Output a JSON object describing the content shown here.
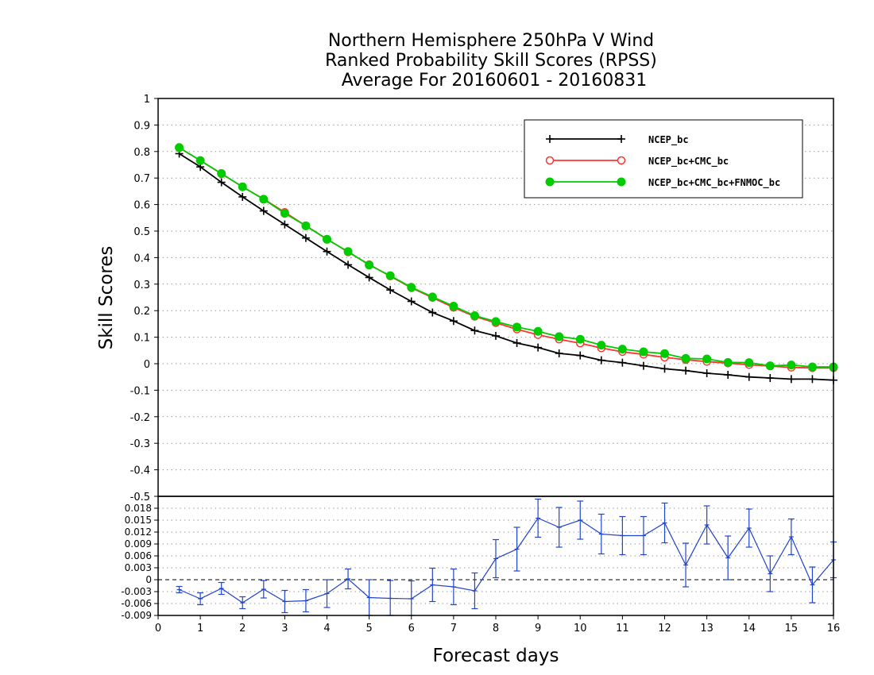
{
  "chart_data": [
    {
      "type": "line",
      "title": [
        "Northern Hemisphere 250hPa V Wind",
        "Ranked Probability Skill Scores (RPSS)",
        "Average For 20160601 - 20160831"
      ],
      "ylabel": "Skill Scores",
      "xlim": [
        0,
        16
      ],
      "ylim": [
        -0.5,
        1
      ],
      "yticks": [
        "1",
        "0.9",
        "0.8",
        "0.7",
        "0.6",
        "0.5",
        "0.4",
        "0.3",
        "0.2",
        "0.1",
        "0",
        "-0.1",
        "-0.2",
        "-0.3",
        "-0.4",
        "-0.5"
      ],
      "grid": true,
      "legend_position": "top-right",
      "x": [
        0.5,
        1.0,
        1.5,
        2.0,
        2.5,
        3.0,
        3.5,
        4.0,
        4.5,
        5.0,
        5.5,
        6.0,
        6.5,
        7.0,
        7.5,
        8.0,
        8.5,
        9.0,
        9.5,
        10.0,
        10.5,
        11.0,
        11.5,
        12.0,
        12.5,
        13.0,
        13.5,
        14.0,
        14.5,
        15.0,
        15.5,
        16.0
      ],
      "series": [
        {
          "name": "NCEP_bc",
          "color": "#000000",
          "marker": "plus",
          "values": [
            0.792,
            0.742,
            0.684,
            0.629,
            0.576,
            0.525,
            0.474,
            0.423,
            0.373,
            0.325,
            0.278,
            0.235,
            0.193,
            0.161,
            0.125,
            0.105,
            0.078,
            0.061,
            0.039,
            0.031,
            0.013,
            0.004,
            -0.008,
            -0.019,
            -0.026,
            -0.036,
            -0.042,
            -0.05,
            -0.054,
            -0.058,
            -0.058,
            -0.062
          ]
        },
        {
          "name": "NCEP_bc+CMC_bc",
          "color": "#ff3333",
          "marker": "open-circle",
          "values": [
            0.814,
            0.766,
            0.716,
            0.667,
            0.621,
            0.571,
            0.52,
            0.47,
            0.421,
            0.374,
            0.33,
            0.286,
            0.249,
            0.212,
            0.178,
            0.154,
            0.13,
            0.109,
            0.092,
            0.077,
            0.059,
            0.045,
            0.035,
            0.024,
            0.015,
            0.008,
            0.002,
            -0.004,
            -0.009,
            -0.014,
            -0.016,
            -0.016
          ]
        },
        {
          "name": "NCEP_bc+CMC_bc+FNMOC_bc",
          "color": "#00cc00",
          "marker": "filled-circle",
          "values": [
            0.815,
            0.766,
            0.717,
            0.667,
            0.62,
            0.567,
            0.52,
            0.469,
            0.423,
            0.372,
            0.332,
            0.288,
            0.252,
            0.217,
            0.181,
            0.159,
            0.138,
            0.122,
            0.102,
            0.092,
            0.07,
            0.055,
            0.045,
            0.038,
            0.02,
            0.018,
            0.005,
            0.004,
            -0.008,
            -0.005,
            -0.012,
            -0.012
          ]
        }
      ]
    },
    {
      "type": "line",
      "xlabel": "Forecast days",
      "xlim": [
        0,
        16
      ],
      "xticks": [
        "0",
        "1",
        "2",
        "3",
        "4",
        "5",
        "6",
        "7",
        "8",
        "9",
        "10",
        "11",
        "12",
        "13",
        "14",
        "15",
        "16"
      ],
      "ylim": [
        -0.009,
        0.021
      ],
      "yticks": [
        "0.018",
        "0.015",
        "0.012",
        "0.009",
        "0.006",
        "0.003",
        "0",
        "-0.003",
        "-0.006",
        "-0.009"
      ],
      "zero_line": "dashed",
      "series": [
        {
          "color": "#2244cc",
          "error_bars": true,
          "x": [
            0.5,
            1.0,
            1.5,
            2.0,
            2.5,
            3.0,
            3.5,
            4.0,
            4.5,
            5.0,
            5.5,
            6.0,
            6.5,
            7.0,
            7.5,
            8.0,
            8.5,
            9.0,
            9.5,
            10.0,
            10.5,
            11.0,
            11.5,
            12.0,
            12.5,
            13.0,
            13.5,
            14.0,
            14.5,
            15.0,
            15.5,
            16.0
          ],
          "values": [
            -0.0025,
            -0.0048,
            -0.0022,
            -0.0058,
            -0.0024,
            -0.0055,
            -0.0053,
            -0.0035,
            0.0002,
            -0.0045,
            -0.0047,
            -0.0048,
            -0.0013,
            -0.0018,
            -0.0028,
            0.0053,
            0.0077,
            0.0155,
            0.0132,
            0.015,
            0.0115,
            0.0111,
            0.0111,
            0.0143,
            0.0037,
            0.0138,
            0.0055,
            0.013,
            0.0015,
            0.0108,
            -0.0013,
            0.005
          ],
          "errors": [
            0.0008,
            0.0015,
            0.0015,
            0.0015,
            0.0022,
            0.0028,
            0.0028,
            0.0035,
            0.0025,
            0.0045,
            0.0045,
            0.0045,
            0.0042,
            0.0045,
            0.0045,
            0.0048,
            0.0055,
            0.0048,
            0.005,
            0.0048,
            0.005,
            0.0048,
            0.0048,
            0.005,
            0.0055,
            0.0048,
            0.0055,
            0.0048,
            0.0045,
            0.0045,
            0.0045,
            0.0045
          ]
        }
      ]
    }
  ]
}
